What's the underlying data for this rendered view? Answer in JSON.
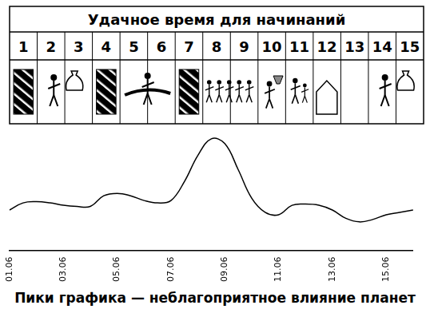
{
  "header": {
    "title": "Удачное время для начинаний",
    "days": [
      1,
      2,
      3,
      4,
      5,
      6,
      7,
      8,
      9,
      10,
      11,
      12,
      13,
      14,
      15
    ]
  },
  "chart_data": {
    "type": "line",
    "categories": [
      "01.06",
      null,
      null,
      null,
      "03.06",
      null,
      null,
      null,
      "05.06",
      null,
      null,
      null,
      "07.06",
      null,
      null,
      null,
      "09.06",
      null,
      null,
      null,
      "11.06",
      null,
      null,
      null,
      "13.06",
      null,
      null,
      null,
      "15.06",
      null,
      null
    ],
    "values": [
      34,
      40,
      41,
      40,
      38,
      37,
      37,
      46,
      48,
      46,
      42,
      40,
      42,
      58,
      80,
      94,
      90,
      68,
      44,
      32,
      30,
      38,
      39,
      38,
      34,
      27,
      24,
      26,
      30,
      32,
      34
    ],
    "color": "#000000",
    "ylim": [
      0,
      100
    ],
    "grid": false,
    "tick_labels": "x"
  },
  "caption": "Пики графика — неблагоприятное влияние планет"
}
